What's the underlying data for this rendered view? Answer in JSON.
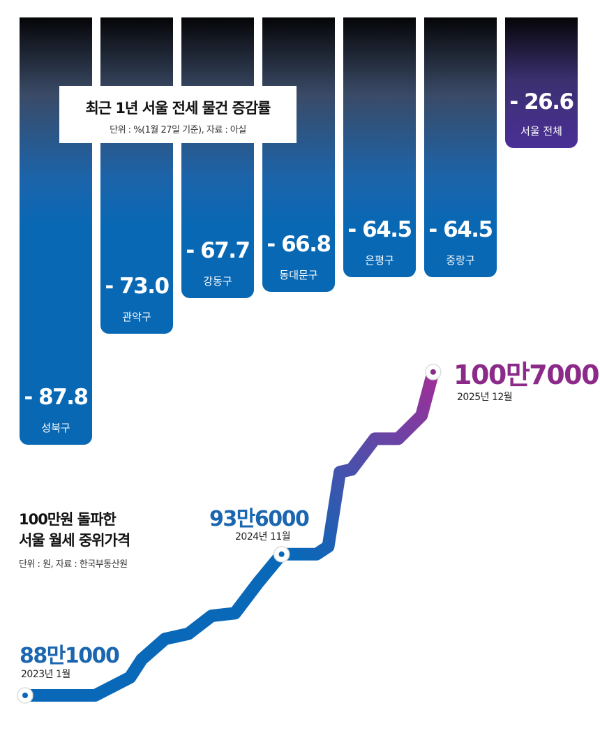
{
  "chart_data": [
    {
      "type": "bar",
      "title": "최근 1년 서울 전세 물건 증감률",
      "subtitle": "단위 : %(1월 27일 기준), 자료 : 아실",
      "categories": [
        "성북구",
        "관악구",
        "강동구",
        "동대문구",
        "은평구",
        "중랑구",
        "서울 전체"
      ],
      "values": [
        -87.8,
        -73.0,
        -67.7,
        -66.8,
        -64.5,
        -64.5,
        -26.6
      ],
      "value_labels": [
        "- 87.8",
        "- 73.0",
        "- 67.7",
        "- 66.8",
        "- 64.5",
        "- 64.5",
        "- 26.6"
      ],
      "colors": {
        "district": "#0868b4",
        "total": "#4a2f96"
      }
    },
    {
      "type": "line",
      "title": "100만원 돌파한",
      "title2": "서울 월세 중위가격",
      "subtitle": "단위 : 원, 자료 : 한국부동산원",
      "points": [
        {
          "x": "2023-01",
          "y": 881000
        },
        {
          "x": "2023-07",
          "y": 881000
        },
        {
          "x": "2023-10",
          "y": 888000
        },
        {
          "x": "2023-11",
          "y": 895000
        },
        {
          "x": "2024-01",
          "y": 903000
        },
        {
          "x": "2024-03",
          "y": 905000
        },
        {
          "x": "2024-05",
          "y": 912000
        },
        {
          "x": "2024-07",
          "y": 913000
        },
        {
          "x": "2024-09",
          "y": 925000
        },
        {
          "x": "2024-11",
          "y": 936000
        },
        {
          "x": "2025-02",
          "y": 936000
        },
        {
          "x": "2025-03",
          "y": 939000
        },
        {
          "x": "2025-04",
          "y": 968000
        },
        {
          "x": "2025-05",
          "y": 969000
        },
        {
          "x": "2025-07",
          "y": 981000
        },
        {
          "x": "2025-09",
          "y": 981000
        },
        {
          "x": "2025-11",
          "y": 990000
        },
        {
          "x": "2025-12",
          "y": 1007000
        }
      ],
      "annotations": [
        {
          "value": "88만1000",
          "date": "2023년 1월"
        },
        {
          "value": "93만6000",
          "date": "2024년 11월"
        },
        {
          "value": "100만7000",
          "date": "2025년 12월"
        }
      ],
      "colors": {
        "start": "#0a68b8",
        "end": "#a02e98",
        "label_blue": "#1a66b0",
        "label_purple": "#8b2a88"
      }
    }
  ]
}
